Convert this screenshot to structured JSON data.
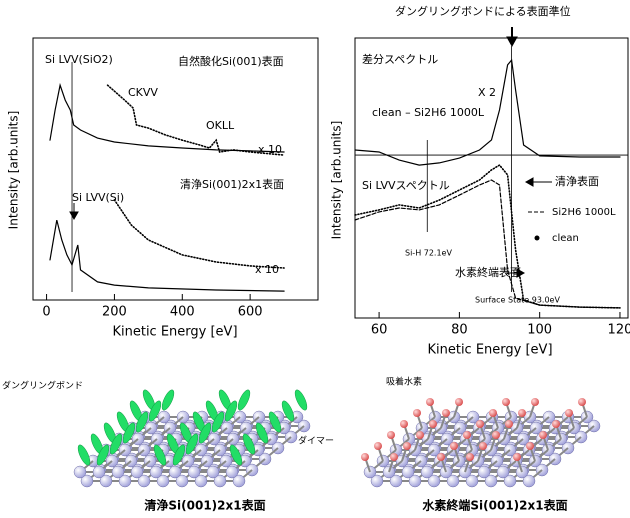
{
  "chart_data": [
    {
      "type": "line",
      "xlabel": "Kinetic  Energy  [eV]",
      "ylabel": "Intensity  [arb.units]",
      "xlim": [
        -40,
        800
      ],
      "xticks": [
        0,
        200,
        400,
        600
      ],
      "ylim": [
        0,
        10
      ],
      "series": [
        {
          "color": "#000000",
          "line_style": "solid",
          "x": [
            10,
            25,
            40,
            55,
            70,
            80,
            100,
            150,
            200,
            300,
            400,
            500,
            600,
            700
          ],
          "values": [
            6.1,
            7.25,
            8.2,
            7.63,
            7.25,
            6.68,
            6.49,
            6.18,
            6.03,
            5.88,
            5.8,
            5.73,
            5.69,
            5.65
          ]
        },
        {
          "color": "#000000",
          "line_style": "dotted",
          "x": [
            180,
            230,
            255,
            265,
            300,
            350,
            400,
            450,
            480,
            500,
            510,
            550,
            600,
            700
          ],
          "values": [
            8.2,
            7.63,
            7.33,
            6.68,
            6.56,
            6.3,
            6.1,
            5.92,
            5.8,
            6.1,
            5.65,
            5.73,
            5.65,
            5.53
          ]
        },
        {
          "color": "#000000",
          "line_style": "solid",
          "x": [
            10,
            30,
            45,
            60,
            75,
            92,
            100,
            150,
            200,
            300,
            500,
            700
          ],
          "values": [
            1.53,
            3.05,
            2.29,
            1.72,
            1.34,
            2.1,
            1.15,
            0.69,
            0.57,
            0.46,
            0.38,
            0.34
          ]
        },
        {
          "color": "#000000",
          "line_style": "dotted",
          "x": [
            200,
            250,
            300,
            400,
            500,
            600,
            700
          ],
          "values": [
            3.82,
            2.86,
            2.29,
            1.72,
            1.45,
            1.3,
            1.22
          ]
        }
      ],
      "vlines": [
        75
      ],
      "annotations": [
        "Si LVV(SiO2)",
        "自然酸化Si(001)表面",
        "CKVV",
        "OKLL",
        "x 10",
        "Si LVV(Si)",
        "清浄Si(001)2x1表面",
        "x 10"
      ]
    },
    {
      "type": "line",
      "xlabel": "Kinetic Energy [eV]",
      "ylabel": "Intensity [arb.units]",
      "xlim": [
        54,
        122
      ],
      "xticks": [
        60,
        80,
        100,
        120
      ],
      "ylim": [
        0,
        10
      ],
      "series": [
        {
          "color": "#000000",
          "line_style": "solid",
          "x": [
            54,
            60,
            65,
            70,
            75,
            80,
            85,
            88,
            90,
            92,
            93,
            94,
            96,
            100,
            110,
            120
          ],
          "values": [
            6,
            5.93,
            5.64,
            5.46,
            5.54,
            5.71,
            6,
            6.36,
            7.43,
            9.04,
            9.21,
            8.14,
            6.18,
            5.79,
            5.75,
            5.75
          ]
        },
        {
          "name": "Si2H6 1000L",
          "color": "#000000",
          "line_style": "dashed",
          "x": [
            54,
            60,
            65,
            70,
            75,
            80,
            85,
            88,
            90,
            92,
            94,
            100,
            110,
            120
          ],
          "values": [
            3.5,
            3.79,
            3.93,
            3.86,
            4.04,
            4.39,
            4.75,
            4.93,
            4.75,
            1.71,
            0.71,
            0.46,
            0.39,
            0.36
          ]
        },
        {
          "name": "clean",
          "color": "#000000",
          "line_style": "dotted",
          "x": [
            54,
            60,
            65,
            70,
            75,
            80,
            85,
            88,
            90,
            92,
            94,
            96,
            100,
            110,
            120
          ],
          "values": [
            3.68,
            3.86,
            4.04,
            3.93,
            4.21,
            4.57,
            4.93,
            5.29,
            5.46,
            5.11,
            2.43,
            0.64,
            0.46,
            0.39,
            0.36
          ]
        }
      ],
      "hlines": [
        5.82
      ],
      "vlines": [
        72,
        93
      ],
      "annotations": [
        "ダングリングボンドによる表面準位",
        "差分スペクトル",
        "X 2",
        "clean – Si2H6 1000L",
        "Si LVVスペクトル",
        "清浄表面",
        "水素終端表面",
        "Si-H 72.1eV",
        "Surface State 93.0eV"
      ]
    }
  ],
  "illustrations": [
    {
      "caption": "清浄Si(001)2x1表面",
      "labels": [
        "ダングリングボンド",
        "ダイマー"
      ]
    },
    {
      "caption": "水素終端Si(001)2x1表面",
      "labels": [
        "吸着水素"
      ]
    }
  ]
}
